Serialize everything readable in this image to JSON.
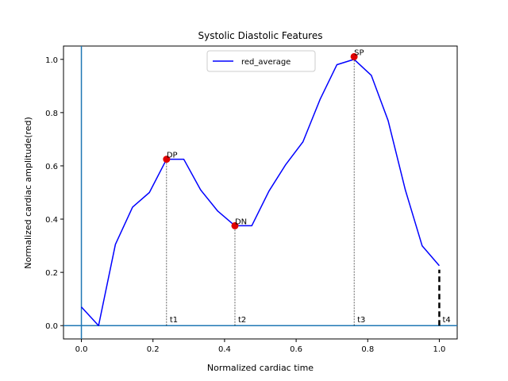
{
  "chart_data": {
    "type": "line",
    "title": "Systolic Diastolic Features",
    "xlabel": "Normalized cardiac time",
    "ylabel": "Normalized cardiac amplitude(red)",
    "xlim": [
      -0.05,
      1.05
    ],
    "ylim": [
      -0.05,
      1.05
    ],
    "xticks": [
      {
        "value": 0.0,
        "label": "0.0"
      },
      {
        "value": 0.2,
        "label": "0.2"
      },
      {
        "value": 0.4,
        "label": "0.4"
      },
      {
        "value": 0.6,
        "label": "0.6"
      },
      {
        "value": 0.8,
        "label": "0.8"
      },
      {
        "value": 1.0,
        "label": "1.0"
      }
    ],
    "yticks": [
      {
        "value": 0.0,
        "label": "0.0"
      },
      {
        "value": 0.2,
        "label": "0.2"
      },
      {
        "value": 0.4,
        "label": "0.4"
      },
      {
        "value": 0.6,
        "label": "0.6"
      },
      {
        "value": 0.8,
        "label": "0.8"
      },
      {
        "value": 1.0,
        "label": "1.0"
      }
    ],
    "grid": false,
    "legend_position": "upper center",
    "series": [
      {
        "name": "red_average",
        "color": "#0000ff",
        "x": [
          0.0,
          0.048,
          0.095,
          0.143,
          0.19,
          0.238,
          0.286,
          0.333,
          0.381,
          0.429,
          0.476,
          0.524,
          0.571,
          0.619,
          0.667,
          0.714,
          0.762,
          0.81,
          0.857,
          0.905,
          0.952,
          1.0
        ],
        "y": [
          0.07,
          0.0,
          0.305,
          0.445,
          0.5,
          0.625,
          0.625,
          0.51,
          0.43,
          0.375,
          0.375,
          0.505,
          0.605,
          0.69,
          0.85,
          0.98,
          1.0,
          0.94,
          0.77,
          0.51,
          0.3,
          0.225
        ]
      }
    ],
    "feature_points": [
      {
        "label": "DP",
        "x": 0.238,
        "y": 0.625,
        "color": "#e00000"
      },
      {
        "label": "DN",
        "x": 0.429,
        "y": 0.375,
        "color": "#e00000"
      },
      {
        "label": "SP",
        "x": 0.762,
        "y": 1.01,
        "color": "#e00000"
      }
    ],
    "time_markers": [
      {
        "label": "t1",
        "x": 0.238,
        "y_top": 0.625
      },
      {
        "label": "t2",
        "x": 0.429,
        "y_top": 0.375
      },
      {
        "label": "t3",
        "x": 0.762,
        "y_top": 1.0
      },
      {
        "label": "t4",
        "x": 1.0,
        "y_top": 0.21
      }
    ],
    "reference_lines": {
      "horizontal_y": 0.0,
      "vertical_x": 0.0,
      "color": "#1f77b4"
    }
  }
}
